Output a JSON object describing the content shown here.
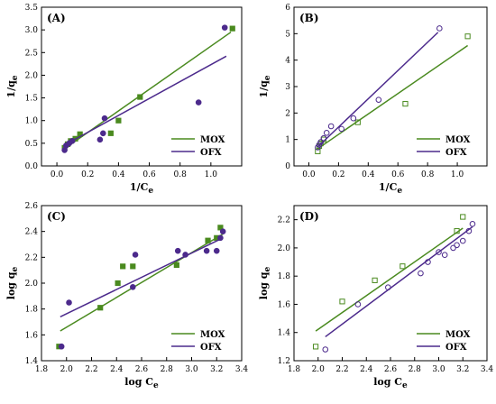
{
  "colors": {
    "mox": "#4a8a1f",
    "ofx": "#4c2a8c"
  },
  "panels": [
    {
      "label": "(A)",
      "xlabel_main": "1/C",
      "xlabel_sub": "e",
      "ylabel_main": "1/q",
      "ylabel_sub": "e",
      "xlim": [
        -0.1,
        1.2
      ],
      "ylim": [
        0,
        3.5
      ],
      "xticks": [
        0.0,
        0.2,
        0.4,
        0.6,
        0.8,
        1.0
      ],
      "xtick_labels": [
        "0.0",
        "0.2",
        "0.4",
        "0.6",
        "0.8",
        "1.0"
      ],
      "yticks": [
        0,
        0.5,
        1.0,
        1.5,
        2.0,
        2.5,
        3.0,
        3.5
      ],
      "ytick_labels": [
        "0.0",
        "0.5",
        "1.0",
        "1.5",
        "2.0",
        "2.5",
        "3.0",
        "3.5"
      ],
      "series": [
        {
          "name": "MOX",
          "marker": "square",
          "filled": true,
          "x": [
            0.05,
            0.07,
            0.09,
            0.12,
            0.15,
            0.35,
            0.4,
            0.54,
            1.14
          ],
          "y": [
            0.4,
            0.48,
            0.55,
            0.6,
            0.7,
            0.72,
            1.0,
            1.52,
            3.03
          ],
          "fit": [
            [
              0.05,
              0.38
            ],
            [
              1.13,
              2.95
            ]
          ]
        },
        {
          "name": "OFX",
          "marker": "circle",
          "filled": true,
          "x": [
            0.05,
            0.06,
            0.08,
            0.1,
            0.28,
            0.3,
            0.31,
            0.92,
            1.09
          ],
          "y": [
            0.35,
            0.45,
            0.5,
            0.55,
            0.58,
            0.72,
            1.05,
            1.4,
            3.05
          ],
          "fit": [
            [
              0.05,
              0.46
            ],
            [
              1.1,
              2.42
            ]
          ]
        }
      ]
    },
    {
      "label": "(B)",
      "xlabel_main": "1/C",
      "xlabel_sub": "e",
      "ylabel_main": "1/q",
      "ylabel_sub": "e",
      "xlim": [
        -0.1,
        1.2
      ],
      "ylim": [
        0,
        6
      ],
      "xticks": [
        0.0,
        0.2,
        0.4,
        0.6,
        0.8,
        1.0
      ],
      "xtick_labels": [
        "0.0",
        "0.2",
        "0.4",
        "0.6",
        "0.8",
        "1.0"
      ],
      "yticks": [
        0,
        1,
        2,
        3,
        4,
        5,
        6
      ],
      "ytick_labels": [
        "0",
        "1",
        "2",
        "3",
        "4",
        "5",
        "6"
      ],
      "series": [
        {
          "name": "MOX",
          "marker": "square",
          "filled": false,
          "x": [
            0.06,
            0.07,
            0.08,
            0.1,
            0.33,
            0.65,
            1.07
          ],
          "y": [
            0.55,
            0.75,
            0.85,
            1.0,
            1.65,
            2.35,
            4.9
          ],
          "fit": [
            [
              0.06,
              0.65
            ],
            [
              1.07,
              4.55
            ]
          ]
        },
        {
          "name": "OFX",
          "marker": "circle",
          "filled": false,
          "x": [
            0.06,
            0.07,
            0.08,
            0.1,
            0.12,
            0.15,
            0.22,
            0.3,
            0.47,
            0.88
          ],
          "y": [
            0.7,
            0.8,
            0.9,
            1.05,
            1.25,
            1.5,
            1.4,
            1.8,
            2.5,
            5.2
          ],
          "fit": [
            [
              0.06,
              0.72
            ],
            [
              0.87,
              5.05
            ]
          ]
        }
      ]
    },
    {
      "label": "(C)",
      "xlabel_main": "log C",
      "xlabel_sub": "e",
      "ylabel_main": "log q",
      "ylabel_sub": "e",
      "xlim": [
        1.8,
        3.4
      ],
      "ylim": [
        1.4,
        2.6
      ],
      "xticks": [
        1.8,
        2.0,
        2.2,
        2.4,
        2.6,
        2.8,
        3.0,
        3.2,
        3.4
      ],
      "xtick_labels": [
        "1.8",
        "2.0",
        "2.2",
        "2.4",
        "2.6",
        "2.8",
        "3.0",
        "3.2",
        "3.4"
      ],
      "yticks": [
        1.4,
        1.6,
        1.8,
        2.0,
        2.2,
        2.4,
        2.6
      ],
      "ytick_labels": [
        "1.4",
        "1.6",
        "1.8",
        "2.0",
        "2.2",
        "2.4",
        "2.6"
      ],
      "series": [
        {
          "name": "MOX",
          "marker": "square",
          "filled": true,
          "x": [
            1.94,
            2.27,
            2.41,
            2.45,
            2.53,
            2.88,
            3.13,
            3.2,
            3.23
          ],
          "y": [
            1.51,
            1.81,
            2.0,
            2.13,
            2.13,
            2.14,
            2.33,
            2.35,
            2.43
          ],
          "fit": [
            [
              1.95,
              1.63
            ],
            [
              3.25,
              2.38
            ]
          ]
        },
        {
          "name": "OFX",
          "marker": "circle",
          "filled": true,
          "x": [
            1.96,
            2.02,
            2.53,
            2.55,
            2.89,
            2.95,
            3.12,
            3.2,
            3.23,
            3.25
          ],
          "y": [
            1.51,
            1.85,
            1.97,
            2.22,
            2.25,
            2.22,
            2.25,
            2.25,
            2.35,
            2.4
          ],
          "fit": [
            [
              1.95,
              1.74
            ],
            [
              3.25,
              2.35
            ]
          ]
        }
      ]
    },
    {
      "label": "(D)",
      "xlabel_main": "log C",
      "xlabel_sub": "e",
      "ylabel_main": "log q",
      "ylabel_sub": "e",
      "xlim": [
        1.8,
        3.4
      ],
      "ylim": [
        1.2,
        2.3
      ],
      "xticks": [
        1.8,
        2.0,
        2.2,
        2.4,
        2.6,
        2.8,
        3.0,
        3.2,
        3.4
      ],
      "xtick_labels": [
        "1.8",
        "2.0",
        "2.2",
        "2.4",
        "2.6",
        "2.8",
        "3.0",
        "3.2",
        "3.4"
      ],
      "yticks": [
        1.2,
        1.4,
        1.6,
        1.8,
        2.0,
        2.2
      ],
      "ytick_labels": [
        "1.2",
        "1.4",
        "1.6",
        "1.8",
        "2.0",
        "2.2"
      ],
      "series": [
        {
          "name": "MOX",
          "marker": "square",
          "filled": false,
          "x": [
            1.98,
            2.2,
            2.47,
            2.7,
            3.15,
            3.2
          ],
          "y": [
            1.3,
            1.62,
            1.77,
            1.87,
            2.12,
            2.22
          ],
          "fit": [
            [
              1.98,
              1.41
            ],
            [
              3.2,
              2.14
            ]
          ]
        },
        {
          "name": "OFX",
          "marker": "circle",
          "filled": false,
          "x": [
            2.06,
            2.33,
            2.58,
            2.85,
            2.91,
            3.0,
            3.05,
            3.12,
            3.15,
            3.2,
            3.25,
            3.28
          ],
          "y": [
            1.28,
            1.6,
            1.72,
            1.82,
            1.9,
            1.97,
            1.95,
            2.0,
            2.02,
            2.05,
            2.12,
            2.17
          ],
          "fit": [
            [
              2.06,
              1.37
            ],
            [
              3.28,
              2.15
            ]
          ]
        }
      ]
    }
  ]
}
